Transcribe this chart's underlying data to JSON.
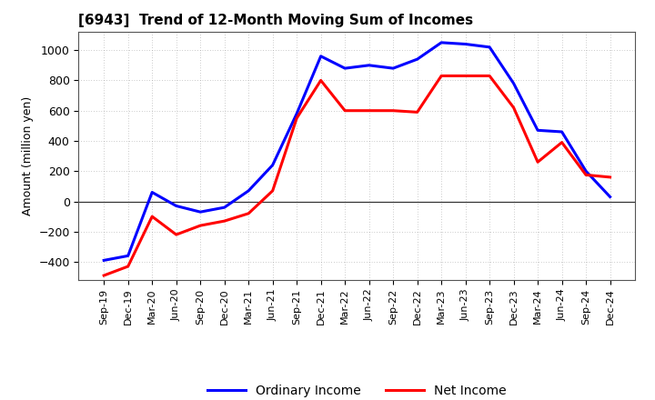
{
  "title": "[6943]  Trend of 12-Month Moving Sum of Incomes",
  "ylabel": "Amount (million yen)",
  "ylim": [
    -520,
    1120
  ],
  "yticks": [
    -400,
    -200,
    0,
    200,
    400,
    600,
    800,
    1000
  ],
  "x_labels": [
    "Sep-19",
    "Dec-19",
    "Mar-20",
    "Jun-20",
    "Sep-20",
    "Dec-20",
    "Mar-21",
    "Jun-21",
    "Sep-21",
    "Dec-21",
    "Mar-22",
    "Jun-22",
    "Sep-22",
    "Dec-22",
    "Mar-23",
    "Jun-23",
    "Sep-23",
    "Dec-23",
    "Mar-24",
    "Jun-24",
    "Sep-24",
    "Dec-24"
  ],
  "ordinary_income": [
    -390,
    -360,
    60,
    -30,
    -70,
    -40,
    70,
    240,
    580,
    960,
    880,
    900,
    880,
    940,
    1050,
    1040,
    1020,
    780,
    470,
    460,
    200,
    30
  ],
  "net_income": [
    -490,
    -430,
    -100,
    -220,
    -160,
    -130,
    -80,
    70,
    550,
    800,
    600,
    600,
    600,
    590,
    830,
    830,
    830,
    620,
    260,
    390,
    175,
    160
  ],
  "ordinary_color": "#0000FF",
  "net_color": "#FF0000",
  "legend_labels": [
    "Ordinary Income",
    "Net Income"
  ],
  "background_color": "#FFFFFF",
  "grid_color": "#999999",
  "zero_line_color": "#333333"
}
